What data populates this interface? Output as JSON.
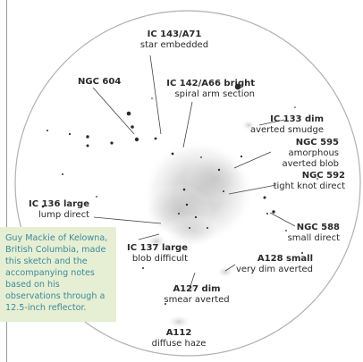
{
  "labels": [
    {
      "id": "ic143",
      "name": "IC 143/A71",
      "desc": "star embedded"
    },
    {
      "id": "ic142",
      "name": "IC 142/A66 bright",
      "desc": "spiral arm section"
    },
    {
      "id": "ngc604",
      "name": "NGC 604",
      "desc": ""
    },
    {
      "id": "ic133",
      "name": "IC 133 dim",
      "desc": "averted smudge"
    },
    {
      "id": "ngc595",
      "name": "NGC 595",
      "desc": "amorphous averted blob"
    },
    {
      "id": "ngc592",
      "name": "NGC 592",
      "desc": "tight knot direct"
    },
    {
      "id": "ic136",
      "name": "IC 136 large",
      "desc": "lump direct"
    },
    {
      "id": "ngc588",
      "name": "NGC 588",
      "desc": "small direct"
    },
    {
      "id": "ic137",
      "name": "IC 137 large",
      "desc": "blob difficult"
    },
    {
      "id": "a128",
      "name": "A128 small",
      "desc": "very dim averted"
    },
    {
      "id": "a127",
      "name": "A127 dim",
      "desc": "smear averted"
    },
    {
      "id": "a112",
      "name": "A112",
      "desc": "diffuse haze"
    }
  ],
  "caption": "Guy Mackie of Kelowna, British Columbia, made this sketch and the accompanying notes based on his observations through a 12.5-inch reflector.",
  "colors": {
    "ink": "#2a2a2a",
    "circle": "#b0b0b0",
    "caption_bg": "#e6efd3",
    "caption_text": "#3d8a9a"
  }
}
